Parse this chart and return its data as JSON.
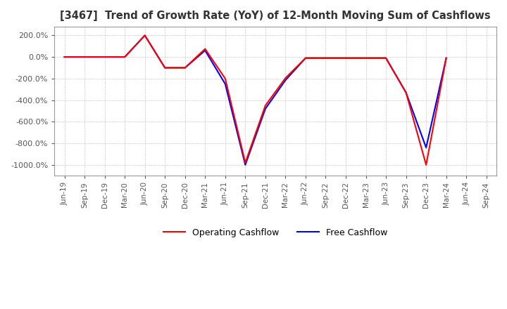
{
  "title": "[3467]  Trend of Growth Rate (YoY) of 12-Month Moving Sum of Cashflows",
  "ylim": [
    -1100,
    280
  ],
  "yticks": [
    200,
    0,
    -200,
    -400,
    -600,
    -800,
    -1000
  ],
  "background_color": "#ffffff",
  "grid_color": "#c8c8c8",
  "operating_color": "#ff0000",
  "free_color": "#0000ff",
  "legend_labels": [
    "Operating Cashflow",
    "Free Cashflow"
  ],
  "x_labels": [
    "Jun-19",
    "Sep-19",
    "Dec-19",
    "Mar-20",
    "Jun-20",
    "Sep-20",
    "Dec-20",
    "Mar-21",
    "Jun-21",
    "Sep-21",
    "Dec-21",
    "Mar-22",
    "Jun-22",
    "Sep-22",
    "Dec-22",
    "Mar-23",
    "Jun-23",
    "Sep-23",
    "Dec-23",
    "Mar-24",
    "Jun-24",
    "Sep-24"
  ],
  "operating_cashflow": [
    0,
    0,
    0,
    0,
    200,
    -100,
    -100,
    75,
    -200,
    -980,
    -450,
    -195,
    -10,
    -10,
    -10,
    -10,
    -10,
    -330,
    -1000,
    -10,
    null,
    null
  ],
  "free_cashflow": [
    0,
    0,
    0,
    0,
    200,
    -100,
    -100,
    60,
    -250,
    -1000,
    -480,
    -215,
    -10,
    -10,
    -10,
    -10,
    -10,
    -330,
    -840,
    -10,
    null,
    null
  ]
}
